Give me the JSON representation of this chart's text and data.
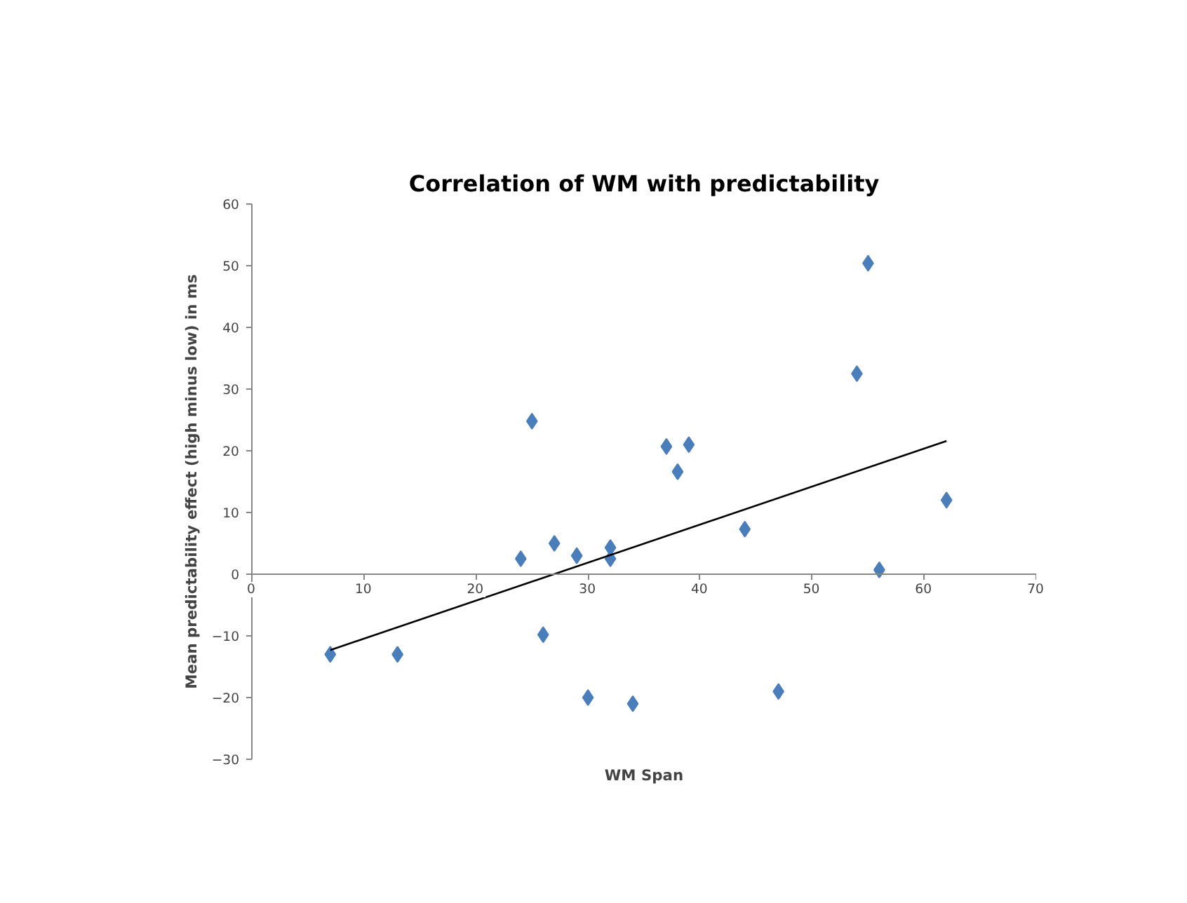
{
  "chart_data": {
    "type": "scatter",
    "title": "Correlation of WM with predictability",
    "xlabel": "WM Span",
    "ylabel": "Mean predictability effect (high minus low) in ms",
    "xlim": [
      0,
      70
    ],
    "xticks": [
      0,
      10,
      20,
      30,
      40,
      50,
      60,
      70
    ],
    "ylim": [
      -30,
      60
    ],
    "yticks": [
      -30,
      -20,
      -10,
      0,
      10,
      20,
      30,
      40,
      50,
      60
    ],
    "grid": false,
    "marker": "diamond",
    "series": [
      {
        "color": "#4a7ebb",
        "x": [
          7,
          13,
          24,
          25,
          26,
          27,
          29,
          30,
          32,
          32,
          34,
          37,
          38,
          39,
          44,
          47,
          54,
          55,
          56,
          62
        ],
        "values": [
          -13,
          -13,
          2.5,
          24.8,
          -9.8,
          5,
          3,
          -20,
          4.3,
          2.5,
          -21,
          20.7,
          16.6,
          21,
          7.3,
          -19,
          32.5,
          50.4,
          0.7,
          12
        ]
      },
      {
        "type": "line",
        "marker": "none",
        "color": "#000000",
        "x": [
          7,
          62
        ],
        "values": [
          -12.3,
          21.6
        ]
      }
    ]
  }
}
